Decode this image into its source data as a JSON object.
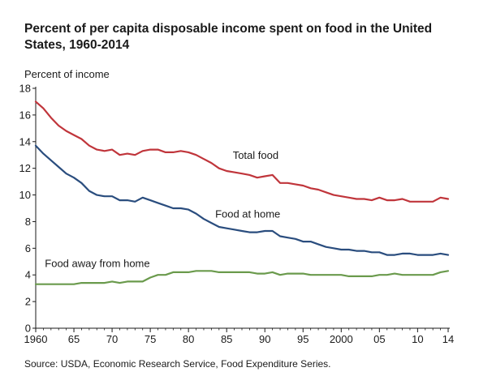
{
  "title": "Percent of per capita disposable income spent on food in the United States, 1960-2014",
  "source": "Source: USDA, Economic Research Service, Food Expenditure Series.",
  "chart_data": {
    "type": "line",
    "title": "Percent of per capita disposable income spent on food in the United States, 1960-2014",
    "ylabel": "Percent of income",
    "xlabel": "",
    "xlim": [
      1960,
      2014
    ],
    "ylim": [
      0,
      18
    ],
    "grid": false,
    "legend": "inline labels",
    "x_ticks": [
      1960,
      1965,
      1970,
      1975,
      1980,
      1985,
      1990,
      1995,
      2000,
      2005,
      2010,
      2014
    ],
    "x_tick_labels": [
      "1960",
      "65",
      "70",
      "75",
      "80",
      "85",
      "90",
      "95",
      "2000",
      "05",
      "10",
      "14"
    ],
    "y_ticks": [
      0,
      2,
      4,
      6,
      8,
      10,
      12,
      14,
      16,
      18
    ],
    "y_tick_labels": [
      "0",
      "2",
      "4",
      "6",
      "8",
      "10",
      "12",
      "14",
      "16",
      "18"
    ],
    "x": [
      1960,
      1961,
      1962,
      1963,
      1964,
      1965,
      1966,
      1967,
      1968,
      1969,
      1970,
      1971,
      1972,
      1973,
      1974,
      1975,
      1976,
      1977,
      1978,
      1979,
      1980,
      1981,
      1982,
      1983,
      1984,
      1985,
      1986,
      1987,
      1988,
      1989,
      1990,
      1991,
      1992,
      1993,
      1994,
      1995,
      1996,
      1997,
      1998,
      1999,
      2000,
      2001,
      2002,
      2003,
      2004,
      2005,
      2006,
      2007,
      2008,
      2009,
      2010,
      2011,
      2012,
      2013,
      2014
    ],
    "series": [
      {
        "name": "Total food",
        "color": "#c0353b",
        "label_x": 1985.8,
        "label_y": 12.7,
        "values": [
          17.0,
          16.5,
          15.8,
          15.2,
          14.8,
          14.5,
          14.2,
          13.7,
          13.4,
          13.3,
          13.4,
          13.0,
          13.1,
          13.0,
          13.3,
          13.4,
          13.4,
          13.2,
          13.2,
          13.3,
          13.2,
          13.0,
          12.7,
          12.4,
          12.0,
          11.8,
          11.7,
          11.6,
          11.5,
          11.3,
          11.4,
          11.5,
          10.9,
          10.9,
          10.8,
          10.7,
          10.5,
          10.4,
          10.2,
          10.0,
          9.9,
          9.8,
          9.7,
          9.7,
          9.6,
          9.8,
          9.6,
          9.6,
          9.7,
          9.5,
          9.5,
          9.5,
          9.5,
          9.8,
          9.7
        ]
      },
      {
        "name": "Food at home",
        "color": "#2a4d7e",
        "label_x": 1983.5,
        "label_y": 8.3,
        "values": [
          13.7,
          13.1,
          12.6,
          12.1,
          11.6,
          11.3,
          10.9,
          10.3,
          10.0,
          9.9,
          9.9,
          9.6,
          9.6,
          9.5,
          9.8,
          9.6,
          9.4,
          9.2,
          9.0,
          9.0,
          8.9,
          8.6,
          8.2,
          7.9,
          7.6,
          7.5,
          7.4,
          7.3,
          7.2,
          7.2,
          7.3,
          7.3,
          6.9,
          6.8,
          6.7,
          6.5,
          6.5,
          6.3,
          6.1,
          6.0,
          5.9,
          5.9,
          5.8,
          5.8,
          5.7,
          5.7,
          5.5,
          5.5,
          5.6,
          5.6,
          5.5,
          5.5,
          5.5,
          5.6,
          5.5
        ]
      },
      {
        "name": "Food away from home",
        "color": "#6a9a4c",
        "label_x": 1961.2,
        "label_y": 4.6,
        "values": [
          3.3,
          3.3,
          3.3,
          3.3,
          3.3,
          3.3,
          3.4,
          3.4,
          3.4,
          3.4,
          3.5,
          3.4,
          3.5,
          3.5,
          3.5,
          3.8,
          4.0,
          4.0,
          4.2,
          4.2,
          4.2,
          4.3,
          4.3,
          4.3,
          4.2,
          4.2,
          4.2,
          4.2,
          4.2,
          4.1,
          4.1,
          4.2,
          4.0,
          4.1,
          4.1,
          4.1,
          4.0,
          4.0,
          4.0,
          4.0,
          4.0,
          3.9,
          3.9,
          3.9,
          3.9,
          4.0,
          4.0,
          4.1,
          4.0,
          4.0,
          4.0,
          4.0,
          4.0,
          4.2,
          4.3
        ]
      }
    ]
  }
}
